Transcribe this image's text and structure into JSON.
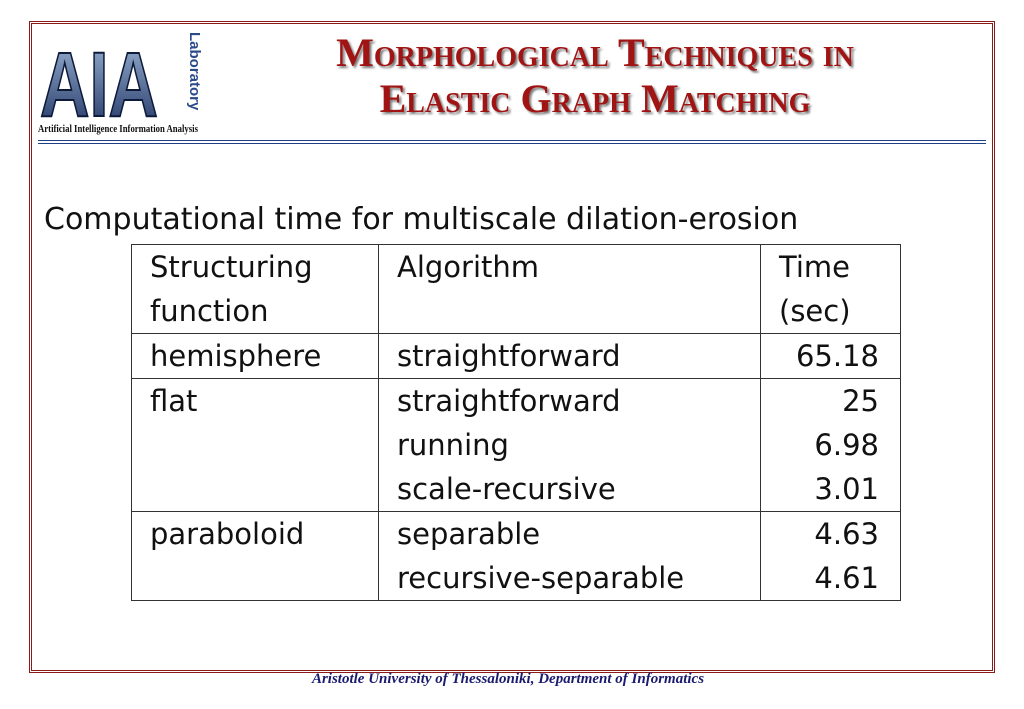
{
  "logo": {
    "letters": "AIA",
    "side_text": "Laboratory",
    "caption": "Artificial Intelligence Information Analysis"
  },
  "header": {
    "title_lines": [
      "Morphological Techniques in",
      "Elastic Graph Matching"
    ]
  },
  "subtitle": "Computational time for multiscale dilation-erosion",
  "table": {
    "headers": [
      "Structuring function",
      "Algorithm",
      "Time (sec)"
    ],
    "groups": [
      {
        "function": "hemisphere",
        "entries": [
          {
            "algorithm": "straightforward",
            "time": 65.18
          }
        ]
      },
      {
        "function": "flat",
        "entries": [
          {
            "algorithm": "straightforward",
            "time": 25
          },
          {
            "algorithm": "running",
            "time": 6.98
          },
          {
            "algorithm": "scale-recursive",
            "time": 3.01
          }
        ]
      },
      {
        "function": "paraboloid",
        "entries": [
          {
            "algorithm": "separable",
            "time": 4.63
          },
          {
            "algorithm": "recursive-separable",
            "time": 4.61
          }
        ]
      }
    ]
  },
  "footer": "Aristotle University of Thessaloniki, Department of Informatics"
}
